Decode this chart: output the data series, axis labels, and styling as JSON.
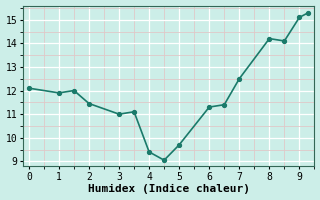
{
  "x": [
    0,
    1,
    1.5,
    2,
    3,
    3.5,
    4,
    4.5,
    5,
    6,
    6.5,
    7,
    8,
    8.5,
    9,
    9.3
  ],
  "y": [
    12.1,
    11.9,
    12.0,
    11.45,
    11.0,
    11.1,
    9.4,
    9.05,
    9.7,
    11.3,
    11.4,
    12.5,
    14.2,
    14.1,
    15.1,
    15.3
  ],
  "line_color": "#1a7a6a",
  "marker_color": "#1a7a6a",
  "bg_color": "#cceee8",
  "grid_major_color": "#ffffff",
  "grid_minor_color": "#e0c8c8",
  "xlabel": "Humidex (Indice chaleur)",
  "xlim": [
    -0.2,
    9.5
  ],
  "ylim": [
    8.8,
    15.6
  ],
  "xticks": [
    0,
    1,
    2,
    3,
    4,
    5,
    6,
    7,
    8,
    9
  ],
  "yticks": [
    9,
    10,
    11,
    12,
    13,
    14,
    15
  ],
  "font_family": "monospace",
  "xlabel_fontsize": 8,
  "tick_fontsize": 7,
  "linewidth": 1.2,
  "markersize": 2.8
}
